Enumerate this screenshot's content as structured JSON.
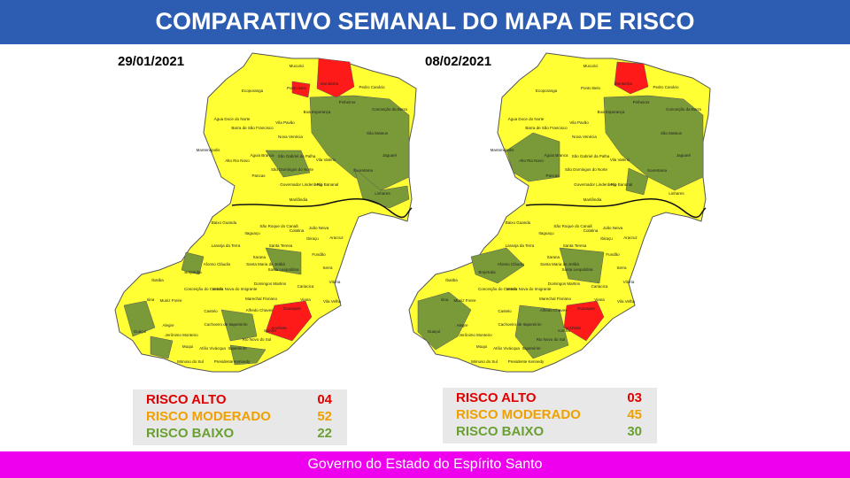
{
  "title": "COMPARATIVO SEMANAL DO MAPA DE RISCO",
  "footer": "Governo do Estado do Espírito Santo",
  "panels": [
    {
      "date": "29/01/2021",
      "legend": [
        {
          "label": "RISCO ALTO",
          "count": "04"
        },
        {
          "label": "RISCO MODERADO",
          "count": "52"
        },
        {
          "label": "RISCO BAIXO",
          "count": "22"
        }
      ]
    },
    {
      "date": "08/02/2021",
      "legend": [
        {
          "label": "RISCO ALTO",
          "count": "03"
        },
        {
          "label": "RISCO MODERADO",
          "count": "45"
        },
        {
          "label": "RISCO BAIXO",
          "count": "30"
        }
      ]
    }
  ],
  "map_labels": [
    "Mucurici",
    "Montanha",
    "Pedro Canário",
    "Ecoporanga",
    "Ponto Belo",
    "Pinheiros",
    "Conceição da Barra",
    "Água Doce do Norte",
    "Barra de São Francisco",
    "Vila Pavão",
    "Boa Esperança",
    "São Mateus",
    "Nova Venécia",
    "Mantenópolis",
    "Águia Branca",
    "São Gabriel da Palha",
    "Vila Valério",
    "Jaguaré",
    "Alto Rio Novo",
    "São Domingos do Norte",
    "Pancas",
    "Sooretama",
    "Rio Bananal",
    "Governador Lindenberg",
    "Linhares",
    "Marilândia",
    "Colatina",
    "Baixo Guandu",
    "São Roque do Canaã",
    "João Neiva",
    "Itaguaçu",
    "Laranja da Terra",
    "Santa Teresa",
    "Ibiraçu",
    "Aracruz",
    "Itarana",
    "Fundão",
    "Afonso Cláudio",
    "Santa Maria de Jetibá",
    "Santa Leopoldina",
    "Serra",
    "Brejetuba",
    "Ibatiba",
    "Domingos Martins",
    "Cariacica",
    "Vitória",
    "Venda Nova do Imigrante",
    "Conceição do Castelo",
    "Viana",
    "Vila Velha",
    "Marechal Floriano",
    "Iúna",
    "Muniz Freire",
    "Castelo",
    "Alfredo Chaves",
    "Guarapari",
    "Anchieta",
    "Cachoeiro de Itapemirim",
    "Alegre",
    "Guaçuí",
    "Jerônimo Monteiro",
    "Iconha",
    "Rio Novo do Sul",
    "Muqui",
    "Atílio Vivácqua",
    "Itapemirim",
    "Mimoso do Sul",
    "Presidente Kennedy"
  ]
}
